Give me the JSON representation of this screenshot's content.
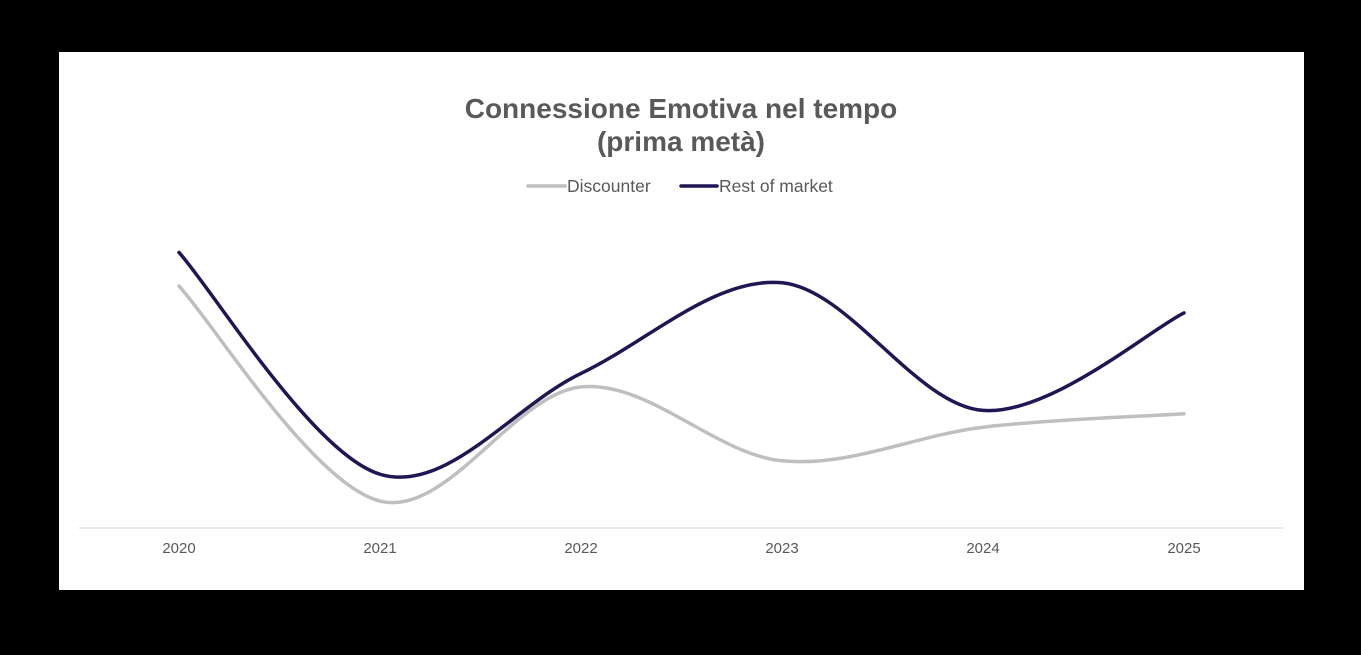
{
  "chart_data": {
    "type": "line",
    "title": [
      "Connessione Emotiva nel tempo",
      "(prima metà)"
    ],
    "categories": [
      "2020",
      "2021",
      "2022",
      "2023",
      "2024",
      "2025"
    ],
    "series": [
      {
        "name": "Discounter",
        "color": "#BFBFBF",
        "values": [
          72,
          8,
          42,
          20,
          30,
          34
        ]
      },
      {
        "name": "Rest of market",
        "color": "#1F1753",
        "values": [
          82,
          16,
          46,
          73,
          35,
          64
        ]
      }
    ],
    "ylim": [
      0,
      100
    ],
    "xlabel": "",
    "ylabel": "",
    "grid": false,
    "legend": "top-center",
    "smooth": true
  }
}
